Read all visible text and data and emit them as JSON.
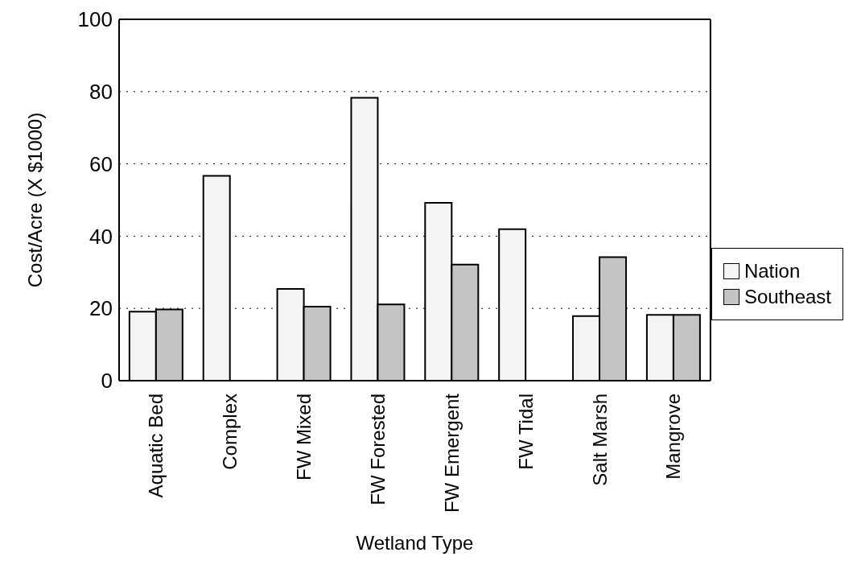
{
  "chart_data": {
    "type": "bar",
    "xlabel": "Wetland Type",
    "ylabel": "Cost/Acre (X $1000)",
    "categories": [
      "Aquatic Bed",
      "Complex",
      "FW Mixed",
      "FW Forested",
      "FW Emergent",
      "FW Tidal",
      "Salt Marsh",
      "Mangrove"
    ],
    "series": [
      {
        "name": "Nation",
        "color": "#f4f4f4",
        "values": [
          19.1,
          56.7,
          25.4,
          78.3,
          49.2,
          41.9,
          17.9,
          18.2
        ]
      },
      {
        "name": "Southeast",
        "color": "#c4c4c4",
        "values": [
          19.7,
          null,
          20.5,
          21.1,
          32.1,
          null,
          34.2,
          18.2
        ]
      }
    ],
    "ylim": [
      0,
      100
    ],
    "yticks": [
      0,
      20,
      40,
      60,
      80,
      100
    ],
    "grid": "y",
    "legend": "right"
  }
}
